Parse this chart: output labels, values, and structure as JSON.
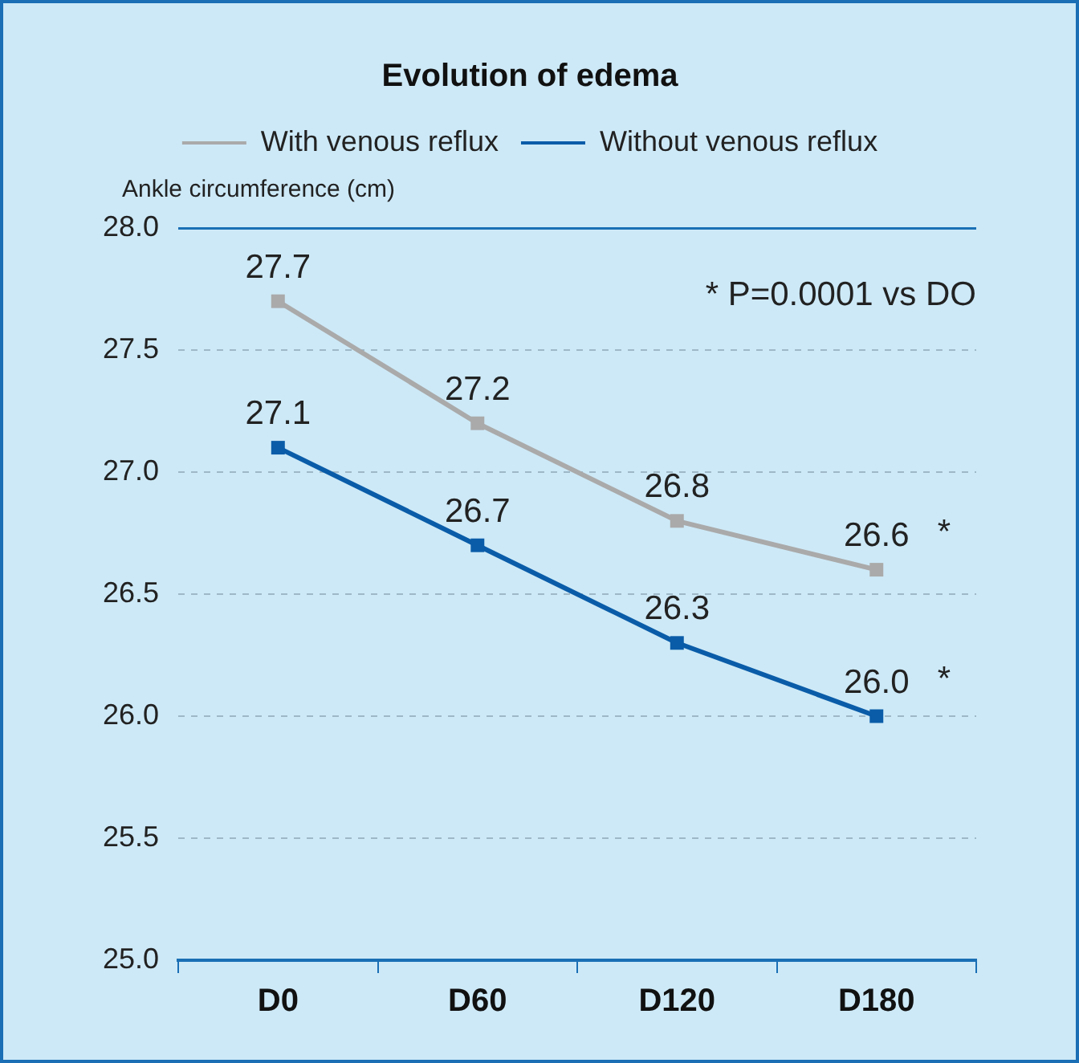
{
  "chart_data": {
    "type": "line",
    "title": "Evolution of edema",
    "ylabel": "Ankle circumference (cm)",
    "categories": [
      "D0",
      "D60",
      "D120",
      "D180"
    ],
    "series": [
      {
        "name": "With venous reflux",
        "color": "#aaaaaa",
        "values": [
          27.7,
          27.2,
          26.8,
          26.6
        ],
        "value_labels": [
          "27.7",
          "27.2",
          "26.8",
          "26.6"
        ]
      },
      {
        "name": "Without venous reflux",
        "color": "#0a5ca8",
        "values": [
          27.1,
          26.7,
          26.3,
          26.0
        ],
        "value_labels": [
          "27.1",
          "26.7",
          "26.3",
          "26.0"
        ]
      }
    ],
    "ylim": [
      25,
      28
    ],
    "yticks": [
      {
        "value": 25,
        "label": "25.0"
      },
      25.5,
      {
        "value": 26,
        "label": "26.0"
      },
      26.5,
      {
        "value": 27,
        "label": "27.0"
      },
      27.5,
      {
        "value": 28,
        "label": "28.0"
      }
    ],
    "grid": "y",
    "legend": "top",
    "marker": "square",
    "line_style": "solid",
    "annotations": [
      {
        "text": "*",
        "x": "D180",
        "y": 26.6
      },
      {
        "text": "*",
        "x": "D180",
        "y": 26.0
      },
      "* P=0.0001 vs DO"
    ]
  }
}
